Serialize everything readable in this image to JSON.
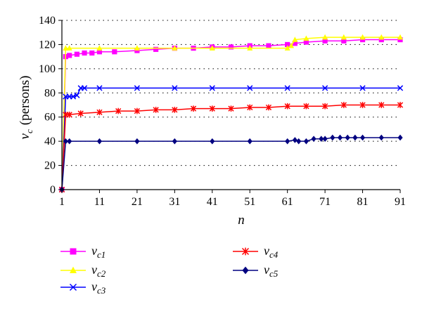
{
  "chart_data": {
    "type": "line",
    "title": "",
    "xlabel": "n",
    "ylabel_var": "v",
    "ylabel_sub": "c",
    "ylabel_unit": "(persons)",
    "xlim": [
      1,
      91
    ],
    "ylim": [
      0,
      140
    ],
    "xticks": [
      "1",
      "11",
      "21",
      "31",
      "41",
      "51",
      "61",
      "71",
      "81",
      "91"
    ],
    "yticks": [
      "0",
      "20",
      "40",
      "60",
      "80",
      "100",
      "120",
      "140"
    ],
    "grid": "horizontal-dotted",
    "legend_position": "bottom",
    "series": [
      {
        "name": "vc1",
        "var": "v",
        "sub": "c1",
        "color": "#ff00ff",
        "marker": "square",
        "x": [
          1,
          2,
          3,
          5,
          7,
          9,
          11,
          15,
          21,
          26,
          31,
          36,
          41,
          46,
          51,
          56,
          61,
          63,
          66,
          71,
          76,
          81,
          86,
          91
        ],
        "y": [
          0,
          110,
          111,
          112,
          113,
          113,
          114,
          114,
          115,
          116,
          117,
          117,
          118,
          118,
          119,
          119,
          120,
          121,
          122,
          123,
          123,
          124,
          124,
          124
        ]
      },
      {
        "name": "vc2",
        "var": "v",
        "sub": "c2",
        "color": "#ffff00",
        "marker": "triangle",
        "x": [
          1,
          2,
          3,
          11,
          21,
          31,
          41,
          51,
          61,
          62,
          63,
          66,
          71,
          76,
          81,
          86,
          91
        ],
        "y": [
          0,
          117,
          117,
          117,
          117,
          117,
          117,
          117,
          117,
          119,
          124,
          125,
          126,
          126,
          126,
          126,
          126
        ]
      },
      {
        "name": "vc3",
        "var": "v",
        "sub": "c3",
        "color": "#0000ff",
        "marker": "x",
        "x": [
          1,
          2,
          3,
          4,
          5,
          6,
          7,
          11,
          21,
          31,
          41,
          51,
          61,
          71,
          81,
          91
        ],
        "y": [
          0,
          77,
          77,
          77,
          78,
          84,
          84,
          84,
          84,
          84,
          84,
          84,
          84,
          84,
          84,
          84
        ]
      },
      {
        "name": "vc4",
        "var": "v",
        "sub": "c4",
        "color": "#ff0000",
        "marker": "asterisk",
        "x": [
          1,
          2,
          3,
          6,
          11,
          16,
          21,
          26,
          31,
          36,
          41,
          46,
          51,
          56,
          61,
          66,
          71,
          76,
          81,
          86,
          91
        ],
        "y": [
          0,
          62,
          62,
          63,
          64,
          65,
          65,
          66,
          66,
          67,
          67,
          67,
          68,
          68,
          69,
          69,
          69,
          70,
          70,
          70,
          70
        ]
      },
      {
        "name": "vc5",
        "var": "v",
        "sub": "c5",
        "color": "#000080",
        "marker": "diamond",
        "x": [
          1,
          2,
          3,
          11,
          21,
          31,
          41,
          51,
          61,
          63,
          64,
          66,
          68,
          70,
          71,
          73,
          75,
          77,
          79,
          81,
          86,
          91
        ],
        "y": [
          0,
          40,
          40,
          40,
          40,
          40,
          40,
          40,
          40,
          41,
          40,
          40,
          42,
          42,
          42,
          43,
          43,
          43,
          43,
          43,
          43,
          43
        ]
      }
    ]
  }
}
